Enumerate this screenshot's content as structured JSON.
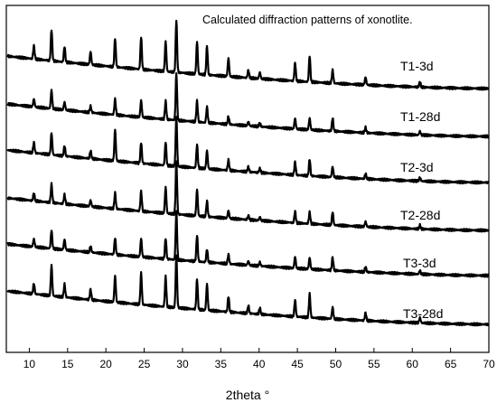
{
  "chart_data": {
    "type": "line",
    "title": "Calculated diffraction patterns of xonotlite.",
    "xlabel": "2theta °",
    "ylabel": "",
    "xlim": [
      7,
      70
    ],
    "x_ticks": [
      10,
      15,
      20,
      25,
      30,
      35,
      40,
      45,
      50,
      55,
      60,
      65,
      70
    ],
    "y_ticks_shown": false,
    "legend": "inline labels right of each trace",
    "series": [
      {
        "name": "T1-3d",
        "peaks": [
          {
            "x": 10.6,
            "h": 0.25
          },
          {
            "x": 12.9,
            "h": 0.6
          },
          {
            "x": 14.6,
            "h": 0.3
          },
          {
            "x": 18.0,
            "h": 0.25
          },
          {
            "x": 21.2,
            "h": 0.55
          },
          {
            "x": 24.6,
            "h": 0.62
          },
          {
            "x": 27.8,
            "h": 0.58
          },
          {
            "x": 29.2,
            "h": 1.0
          },
          {
            "x": 31.9,
            "h": 0.62
          },
          {
            "x": 33.2,
            "h": 0.55
          },
          {
            "x": 36.0,
            "h": 0.35
          },
          {
            "x": 38.6,
            "h": 0.15
          },
          {
            "x": 40.1,
            "h": 0.12
          },
          {
            "x": 44.7,
            "h": 0.35
          },
          {
            "x": 46.6,
            "h": 0.5
          },
          {
            "x": 49.6,
            "h": 0.25
          },
          {
            "x": 53.9,
            "h": 0.15
          },
          {
            "x": 61.0,
            "h": 0.1
          }
        ]
      },
      {
        "name": "T1-28d",
        "peaks": [
          {
            "x": 10.6,
            "h": 0.15
          },
          {
            "x": 12.9,
            "h": 0.35
          },
          {
            "x": 14.6,
            "h": 0.15
          },
          {
            "x": 18.0,
            "h": 0.12
          },
          {
            "x": 21.2,
            "h": 0.3
          },
          {
            "x": 24.6,
            "h": 0.32
          },
          {
            "x": 27.8,
            "h": 0.35
          },
          {
            "x": 29.2,
            "h": 0.9
          },
          {
            "x": 31.9,
            "h": 0.4
          },
          {
            "x": 33.2,
            "h": 0.3
          },
          {
            "x": 36.0,
            "h": 0.15
          },
          {
            "x": 38.6,
            "h": 0.08
          },
          {
            "x": 40.1,
            "h": 0.07
          },
          {
            "x": 44.7,
            "h": 0.2
          },
          {
            "x": 46.6,
            "h": 0.22
          },
          {
            "x": 49.6,
            "h": 0.25
          },
          {
            "x": 53.9,
            "h": 0.1
          },
          {
            "x": 61.0,
            "h": 0.07
          }
        ]
      },
      {
        "name": "T2-3d",
        "peaks": [
          {
            "x": 10.6,
            "h": 0.2
          },
          {
            "x": 12.9,
            "h": 0.42
          },
          {
            "x": 14.6,
            "h": 0.2
          },
          {
            "x": 18.0,
            "h": 0.15
          },
          {
            "x": 21.2,
            "h": 0.6
          },
          {
            "x": 24.6,
            "h": 0.4
          },
          {
            "x": 27.8,
            "h": 0.45
          },
          {
            "x": 29.2,
            "h": 0.95
          },
          {
            "x": 31.9,
            "h": 0.45
          },
          {
            "x": 33.2,
            "h": 0.35
          },
          {
            "x": 36.0,
            "h": 0.2
          },
          {
            "x": 38.6,
            "h": 0.1
          },
          {
            "x": 40.1,
            "h": 0.08
          },
          {
            "x": 44.7,
            "h": 0.25
          },
          {
            "x": 46.6,
            "h": 0.32
          },
          {
            "x": 49.6,
            "h": 0.2
          },
          {
            "x": 53.9,
            "h": 0.1
          },
          {
            "x": 61.0,
            "h": 0.07
          }
        ]
      },
      {
        "name": "T2-28d",
        "peaks": [
          {
            "x": 10.6,
            "h": 0.15
          },
          {
            "x": 12.9,
            "h": 0.35
          },
          {
            "x": 14.6,
            "h": 0.18
          },
          {
            "x": 18.0,
            "h": 0.12
          },
          {
            "x": 21.2,
            "h": 0.3
          },
          {
            "x": 24.6,
            "h": 0.38
          },
          {
            "x": 27.8,
            "h": 0.5
          },
          {
            "x": 29.2,
            "h": 1.0
          },
          {
            "x": 31.9,
            "h": 0.5
          },
          {
            "x": 33.2,
            "h": 0.3
          },
          {
            "x": 36.0,
            "h": 0.15
          },
          {
            "x": 38.6,
            "h": 0.08
          },
          {
            "x": 40.1,
            "h": 0.07
          },
          {
            "x": 44.7,
            "h": 0.22
          },
          {
            "x": 46.6,
            "h": 0.22
          },
          {
            "x": 49.6,
            "h": 0.25
          },
          {
            "x": 53.9,
            "h": 0.1
          },
          {
            "x": 61.0,
            "h": 0.07
          }
        ]
      },
      {
        "name": "T3-3d",
        "peaks": [
          {
            "x": 10.6,
            "h": 0.15
          },
          {
            "x": 12.9,
            "h": 0.35
          },
          {
            "x": 14.6,
            "h": 0.2
          },
          {
            "x": 18.0,
            "h": 0.12
          },
          {
            "x": 21.2,
            "h": 0.32
          },
          {
            "x": 24.6,
            "h": 0.35
          },
          {
            "x": 27.8,
            "h": 0.4
          },
          {
            "x": 29.2,
            "h": 0.92
          },
          {
            "x": 31.9,
            "h": 0.5
          },
          {
            "x": 33.2,
            "h": 0.25
          },
          {
            "x": 36.0,
            "h": 0.18
          },
          {
            "x": 38.6,
            "h": 0.08
          },
          {
            "x": 40.1,
            "h": 0.07
          },
          {
            "x": 44.7,
            "h": 0.22
          },
          {
            "x": 46.6,
            "h": 0.22
          },
          {
            "x": 49.6,
            "h": 0.25
          },
          {
            "x": 53.9,
            "h": 0.1
          },
          {
            "x": 61.0,
            "h": 0.07
          }
        ]
      },
      {
        "name": "T3-28d",
        "peaks": [
          {
            "x": 10.6,
            "h": 0.2
          },
          {
            "x": 12.9,
            "h": 0.58
          },
          {
            "x": 14.6,
            "h": 0.25
          },
          {
            "x": 18.0,
            "h": 0.2
          },
          {
            "x": 21.2,
            "h": 0.5
          },
          {
            "x": 24.6,
            "h": 0.6
          },
          {
            "x": 27.8,
            "h": 0.58
          },
          {
            "x": 29.2,
            "h": 1.0
          },
          {
            "x": 31.9,
            "h": 0.58
          },
          {
            "x": 33.2,
            "h": 0.5
          },
          {
            "x": 36.0,
            "h": 0.3
          },
          {
            "x": 38.6,
            "h": 0.15
          },
          {
            "x": 40.1,
            "h": 0.12
          },
          {
            "x": 44.7,
            "h": 0.32
          },
          {
            "x": 46.6,
            "h": 0.45
          },
          {
            "x": 49.6,
            "h": 0.22
          },
          {
            "x": 53.9,
            "h": 0.15
          },
          {
            "x": 61.0,
            "h": 0.1
          }
        ]
      }
    ]
  }
}
